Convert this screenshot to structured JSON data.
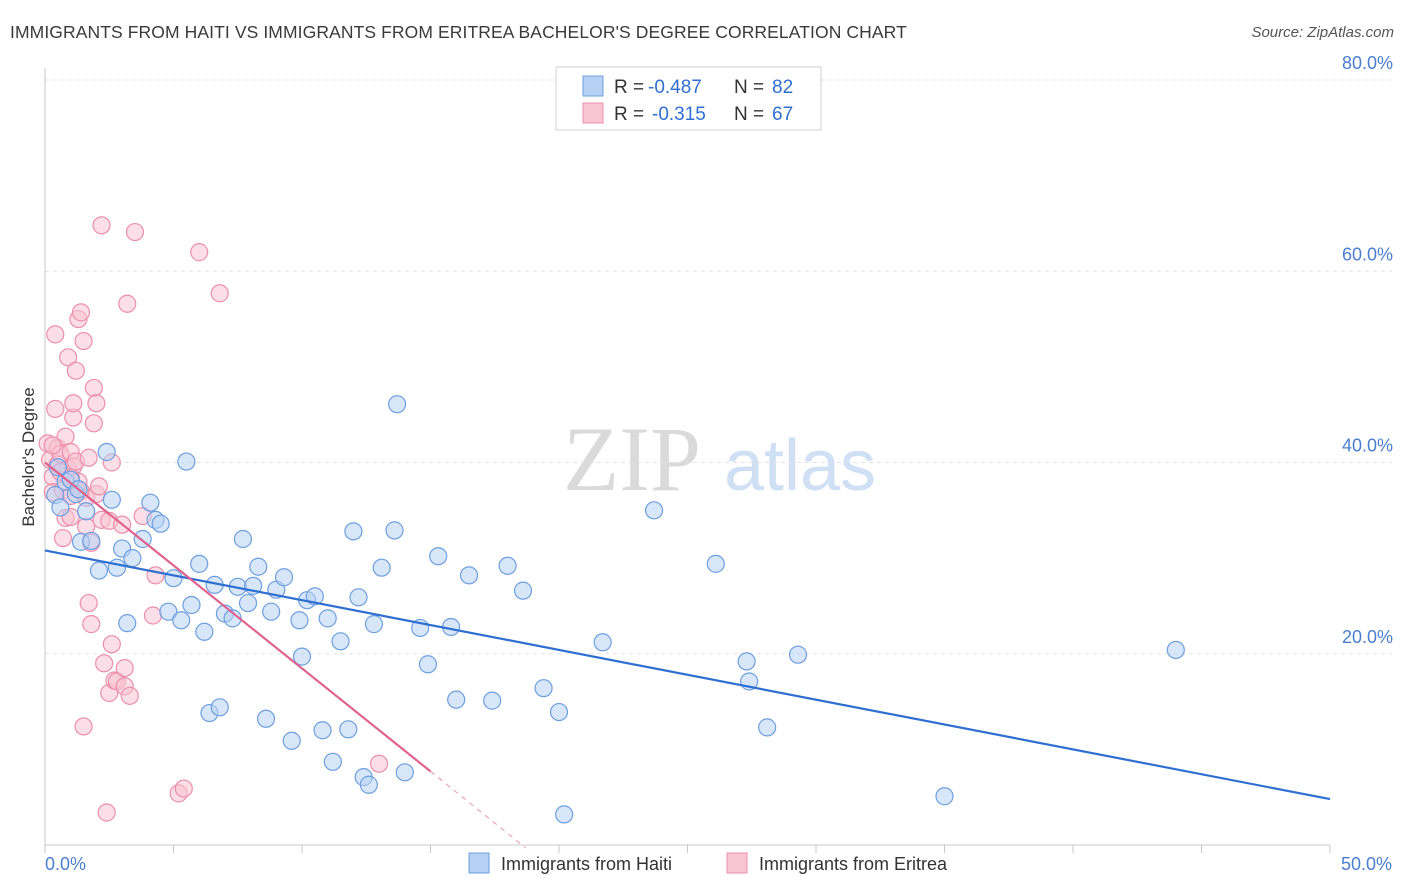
{
  "header": {
    "title": "IMMIGRANTS FROM HAITI VS IMMIGRANTS FROM ERITREA BACHELOR'S DEGREE CORRELATION CHART",
    "source": "Source: ZipAtlas.com"
  },
  "watermark": {
    "zip": "ZIP",
    "atlas": "atlas"
  },
  "legend_box": {
    "rows": [
      {
        "r_label": "R =",
        "r_value": "-0.487",
        "n_label": "N =",
        "n_value": "82"
      },
      {
        "r_label": "R =",
        "r_value": "-0.315",
        "n_label": "N =",
        "n_value": "67"
      }
    ]
  },
  "bottom_legend": {
    "items": [
      {
        "label": "Immigrants from Haiti"
      },
      {
        "label": "Immigrants from Eritrea"
      }
    ]
  },
  "chart_data": {
    "type": "scatter",
    "title": "IMMIGRANTS FROM HAITI VS IMMIGRANTS FROM ERITREA BACHELOR'S DEGREE CORRELATION CHART",
    "xlabel": "",
    "ylabel": "Bachelor's Degree",
    "xlim": [
      0,
      50
    ],
    "ylim": [
      0,
      80
    ],
    "x_tick_labels": [
      "0.0%",
      "50.0%"
    ],
    "y_ticks": [
      20,
      40,
      60,
      80
    ],
    "y_tick_labels": [
      "20.0%",
      "40.0%",
      "60.0%",
      "80.0%"
    ],
    "grid": true,
    "legend_position": "top-center",
    "colors": {
      "haiti_fill": "#b7d1f4",
      "haiti_stroke": "#6d9fe0",
      "haiti_line": "#2f6fd1",
      "eritrea_fill": "#f8c3d3",
      "eritrea_stroke": "#ec8fab",
      "eritrea_line": "#e0628f",
      "tick_text": "#4a7fd0"
    },
    "series": [
      {
        "name": "Immigrants from Haiti",
        "R": -0.487,
        "N": 82,
        "trend": {
          "x": [
            0,
            50
          ],
          "y": [
            30.8,
            4.8
          ]
        },
        "points": [
          [
            0.4,
            36.6
          ],
          [
            0.6,
            35.3
          ],
          [
            0.8,
            38.0
          ],
          [
            1.0,
            38.2
          ],
          [
            1.2,
            36.7
          ],
          [
            1.4,
            31.7
          ],
          [
            1.6,
            34.9
          ],
          [
            1.8,
            31.8
          ],
          [
            2.1,
            28.7
          ],
          [
            2.4,
            41.1
          ],
          [
            2.6,
            36.1
          ],
          [
            2.8,
            29.0
          ],
          [
            3.0,
            31.0
          ],
          [
            3.2,
            23.2
          ],
          [
            3.4,
            30.0
          ],
          [
            3.8,
            32.0
          ],
          [
            4.1,
            35.8
          ],
          [
            4.3,
            34.0
          ],
          [
            4.5,
            33.6
          ],
          [
            4.8,
            24.4
          ],
          [
            5.0,
            27.9
          ],
          [
            5.3,
            23.5
          ],
          [
            5.5,
            40.1
          ],
          [
            5.7,
            25.1
          ],
          [
            6.0,
            29.4
          ],
          [
            6.2,
            22.3
          ],
          [
            6.4,
            13.8
          ],
          [
            6.6,
            27.2
          ],
          [
            6.8,
            14.4
          ],
          [
            7.0,
            24.2
          ],
          [
            7.3,
            23.7
          ],
          [
            7.5,
            27.0
          ],
          [
            7.7,
            32.0
          ],
          [
            7.9,
            25.3
          ],
          [
            8.1,
            27.1
          ],
          [
            8.3,
            29.1
          ],
          [
            8.6,
            13.2
          ],
          [
            8.8,
            24.4
          ],
          [
            9.0,
            26.7
          ],
          [
            9.3,
            28.0
          ],
          [
            9.6,
            10.9
          ],
          [
            9.9,
            23.5
          ],
          [
            10.0,
            19.7
          ],
          [
            10.2,
            25.6
          ],
          [
            10.5,
            26.0
          ],
          [
            10.8,
            12.0
          ],
          [
            11.0,
            23.7
          ],
          [
            11.2,
            8.7
          ],
          [
            11.5,
            21.3
          ],
          [
            11.8,
            12.1
          ],
          [
            12.0,
            32.8
          ],
          [
            12.2,
            25.9
          ],
          [
            12.4,
            7.1
          ],
          [
            12.6,
            6.3
          ],
          [
            12.8,
            23.1
          ],
          [
            13.1,
            29.0
          ],
          [
            13.6,
            32.9
          ],
          [
            13.7,
            46.1
          ],
          [
            14.0,
            7.6
          ],
          [
            14.6,
            22.7
          ],
          [
            14.9,
            18.9
          ],
          [
            15.3,
            30.2
          ],
          [
            15.8,
            22.8
          ],
          [
            16.0,
            15.2
          ],
          [
            16.5,
            28.2
          ],
          [
            17.4,
            15.1
          ],
          [
            18.0,
            29.2
          ],
          [
            18.6,
            26.6
          ],
          [
            19.4,
            16.4
          ],
          [
            20.0,
            13.9
          ],
          [
            20.2,
            3.2
          ],
          [
            21.7,
            21.2
          ],
          [
            23.7,
            35.0
          ],
          [
            26.1,
            29.4
          ],
          [
            27.3,
            19.2
          ],
          [
            27.4,
            17.1
          ],
          [
            28.1,
            12.3
          ],
          [
            29.3,
            19.9
          ],
          [
            35.0,
            5.1
          ],
          [
            44.0,
            20.4
          ],
          [
            0.5,
            39.5
          ],
          [
            1.3,
            37.2
          ]
        ]
      },
      {
        "name": "Immigrants from Eritrea",
        "R": -0.315,
        "N": 67,
        "trend": {
          "x": [
            0,
            15
          ],
          "y": [
            40.0,
            7.7
          ]
        },
        "trend_extension": {
          "x": [
            15,
            18.7
          ],
          "y": [
            7.7,
            -0.3
          ]
        },
        "points": [
          [
            0.1,
            42.0
          ],
          [
            0.2,
            40.3
          ],
          [
            0.3,
            38.5
          ],
          [
            0.3,
            36.9
          ],
          [
            0.4,
            45.6
          ],
          [
            0.4,
            53.4
          ],
          [
            0.5,
            41.5
          ],
          [
            0.5,
            39.8
          ],
          [
            0.6,
            40.9
          ],
          [
            0.7,
            37.1
          ],
          [
            0.7,
            32.1
          ],
          [
            0.8,
            34.2
          ],
          [
            0.8,
            42.7
          ],
          [
            0.9,
            39.3
          ],
          [
            0.9,
            51.0
          ],
          [
            1.0,
            34.3
          ],
          [
            1.0,
            36.5
          ],
          [
            1.0,
            41.1
          ],
          [
            1.1,
            39.6
          ],
          [
            1.1,
            44.7
          ],
          [
            1.1,
            46.2
          ],
          [
            1.2,
            49.6
          ],
          [
            1.2,
            40.1
          ],
          [
            1.3,
            55.0
          ],
          [
            1.3,
            38.0
          ],
          [
            1.4,
            55.7
          ],
          [
            1.4,
            37.0
          ],
          [
            1.5,
            52.7
          ],
          [
            1.5,
            12.4
          ],
          [
            1.6,
            33.3
          ],
          [
            1.6,
            36.3
          ],
          [
            1.7,
            25.3
          ],
          [
            1.8,
            23.1
          ],
          [
            1.8,
            31.6
          ],
          [
            1.9,
            44.1
          ],
          [
            1.9,
            47.8
          ],
          [
            2.0,
            36.7
          ],
          [
            2.0,
            46.2
          ],
          [
            2.1,
            37.5
          ],
          [
            2.2,
            64.8
          ],
          [
            2.2,
            34.0
          ],
          [
            2.3,
            19.0
          ],
          [
            2.4,
            3.4
          ],
          [
            2.5,
            33.9
          ],
          [
            2.5,
            15.9
          ],
          [
            2.6,
            21.0
          ],
          [
            2.6,
            40.0
          ],
          [
            2.7,
            17.2
          ],
          [
            2.8,
            17.1
          ],
          [
            3.0,
            33.5
          ],
          [
            3.1,
            16.6
          ],
          [
            3.1,
            18.5
          ],
          [
            3.2,
            56.6
          ],
          [
            3.3,
            15.6
          ],
          [
            3.5,
            64.1
          ],
          [
            3.8,
            34.4
          ],
          [
            4.2,
            24.0
          ],
          [
            4.3,
            28.2
          ],
          [
            5.2,
            5.4
          ],
          [
            5.4,
            5.9
          ],
          [
            6.0,
            62.0
          ],
          [
            6.8,
            57.7
          ],
          [
            13.0,
            8.5
          ],
          [
            0.6,
            39.0
          ],
          [
            1.0,
            38.4
          ],
          [
            0.3,
            41.8
          ],
          [
            1.7,
            40.5
          ]
        ]
      }
    ]
  }
}
